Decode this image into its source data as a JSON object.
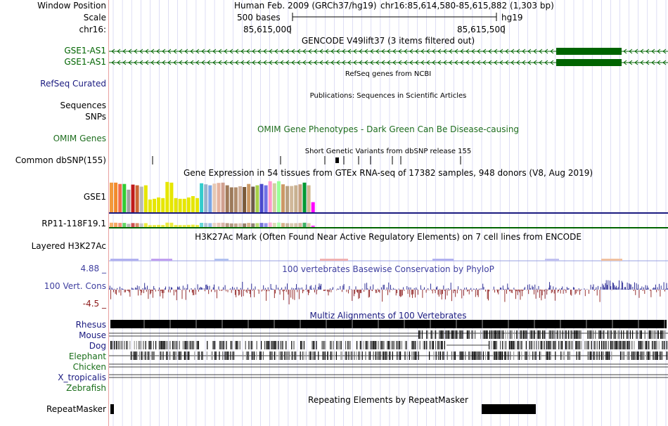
{
  "header": {
    "assembly": "Human Feb. 2009 (GRCh37/hg19)",
    "position": "chr16:85,614,580-85,615,882 (1,303 bp)",
    "scale_label": "500 bases",
    "assembly_short": "hg19",
    "coord_left": "85,615,000",
    "coord_right": "85,615,500"
  },
  "left_labels": {
    "window_position": "Window Position",
    "scale": "Scale",
    "chrom": "chr16:",
    "gene1": "GSE1-AS1",
    "gene2": "GSE1-AS1",
    "refseq": "RefSeq Curated",
    "sequences": "Sequences",
    "snps": "SNPs",
    "omim": "OMIM Genes",
    "dbsnp": "Common dbSNP(155)",
    "gse1": "GSE1",
    "rp11": "RP11-118F19.1",
    "h3k27ac": "Layered H3K27Ac",
    "cons_max": "4.88 _",
    "cons": "100 Vert. Cons",
    "cons_min": "-4.5 _",
    "rhesus": "Rhesus",
    "mouse": "Mouse",
    "dog": "Dog",
    "elephant": "Elephant",
    "chicken": "Chicken",
    "xtrop": "X_tropicalis",
    "zebrafish": "Zebrafish",
    "repeatmasker": "RepeatMasker"
  },
  "track_titles": {
    "gencode": "GENCODE V49lift37 (3 items filtered out)",
    "refseq": "RefSeq genes from NCBI",
    "publications": "Publications: Sequences in Scientific Articles",
    "omim": "OMIM Gene Phenotypes - Dark Green Can Be Disease-causing",
    "dbsnp": "Short Genetic Variants from dbSNP release 155",
    "gtex": "Gene Expression in 54 tissues from GTEx RNA-seq of 17382 samples, 948 donors (V8, Aug 2019)",
    "h3k27ac": "H3K27Ac Mark (Often Found Near Active Regulatory Elements) on 7 cell lines from ENCODE",
    "phylop": "100 vertebrates Basewise Conservation by PhyloP",
    "multiz": "Multiz Alignments of 100 Vertebrates",
    "repeatmasker": "Repeating Elements by RepeatMasker"
  },
  "colors": {
    "gene": "#006400",
    "refseq_label": "#1a1a80",
    "omim": "#1f6e1f",
    "phylop_label": "#4040a0",
    "cons_pos": "#1a1a8c",
    "cons_neg": "#8c1a1a",
    "species": "#1a1a80",
    "species_green": "#1a6e1a",
    "grid": "#c8c8ee",
    "axis_red": "#e8a0a0"
  },
  "gtex_colors": [
    "#f29a3c",
    "#f28a2c",
    "#f26b4a",
    "#33cc33",
    "#a0a0a0",
    "#c01a1a",
    "#cc6633",
    "#b8b8b8",
    "#e6e600",
    "#e6e600",
    "#e6e600",
    "#e6e600",
    "#e6e600",
    "#e6e600",
    "#e6e600",
    "#e6e600",
    "#e6e600",
    "#e6e600",
    "#e6e600",
    "#e6e600",
    "#e6e600",
    "#33cccc",
    "#99b3cc",
    "#7aa6e6",
    "#e6c8b3",
    "#e6b3a0",
    "#d0a090",
    "#a07a5a",
    "#9c7a5a",
    "#b08c6c",
    "#d0b09a",
    "#7a5a3a",
    "#cc9966",
    "#6e5a4a",
    "#a8d04a",
    "#4a4acc",
    "#7070e6",
    "#ff99cc",
    "#d0d0a0",
    "#99ff99",
    "#cc9966",
    "#b8a080",
    "#d0b89a",
    "#c8b090",
    "#c8a080",
    "#009933",
    "#d0b890",
    "#ff00ff"
  ],
  "gtex_values": [
    88,
    88,
    84,
    84,
    67,
    82,
    80,
    76,
    80,
    38,
    40,
    44,
    42,
    90,
    88,
    42,
    40,
    40,
    44,
    48,
    42,
    86,
    83,
    80,
    85,
    87,
    88,
    80,
    74,
    74,
    77,
    75,
    84,
    76,
    80,
    84,
    80,
    92,
    86,
    92,
    83,
    78,
    78,
    80,
    83,
    88,
    80,
    30
  ]
}
